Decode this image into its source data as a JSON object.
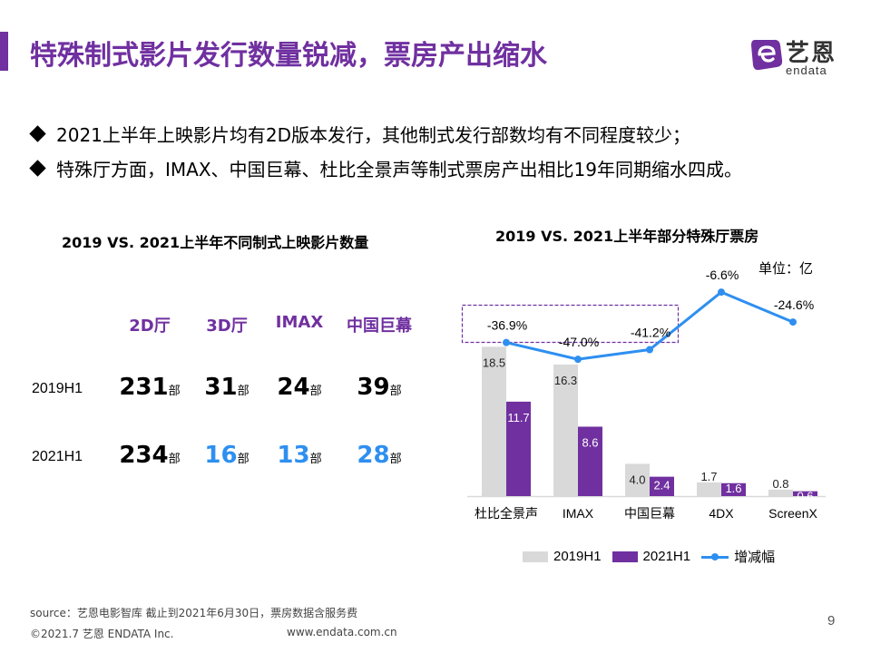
{
  "header": {
    "title": "特殊制式影片发行数量锐减，票房产出缩水",
    "accent_color": "#7030a0",
    "logo": {
      "icon": "endata-e-logo-icon",
      "cn": "艺恩",
      "en": "endata"
    }
  },
  "bullets": [
    "2021上半年上映影片均有2D版本发行，其他制式发行部数均有不同程度较少；",
    "特殊厅方面，IMAX、中国巨幕、杜比全景声等制式票房产出相比19年同期缩水四成。"
  ],
  "left_table": {
    "title": "2019 VS. 2021上半年不同制式上映影片数量",
    "columns": [
      "2D厅",
      "3D厅",
      "IMAX",
      "中国巨幕"
    ],
    "unit": "部",
    "rows": [
      {
        "label": "2019H1",
        "values": [
          "231",
          "31",
          "24",
          "39"
        ],
        "highlight": [
          false,
          false,
          false,
          false
        ]
      },
      {
        "label": "2021H1",
        "values": [
          "234",
          "16",
          "13",
          "28"
        ],
        "highlight": [
          false,
          true,
          true,
          true
        ]
      }
    ],
    "highlight_color": "#2e8ff0"
  },
  "chart_data": [
    {
      "type": "table",
      "title": "2019 VS. 2021上半年不同制式上映影片数量",
      "columns": [
        "2D厅",
        "3D厅",
        "IMAX",
        "中国巨幕"
      ],
      "rows": [
        {
          "name": "2019H1",
          "values": [
            231,
            31,
            24,
            39
          ]
        },
        {
          "name": "2021H1",
          "values": [
            234,
            16,
            13,
            28
          ]
        }
      ],
      "unit": "部"
    },
    {
      "type": "bar",
      "title": "2019 VS. 2021上半年部分特殊厅票房",
      "unit_label": "单位：亿",
      "categories": [
        "杜比全景声",
        "IMAX",
        "中国巨幕",
        "4DX",
        "ScreenX"
      ],
      "series": [
        {
          "name": "2019H1",
          "kind": "bar",
          "color": "#d9d9d9",
          "values": [
            18.5,
            16.3,
            4.0,
            1.7,
            0.8
          ],
          "labels": [
            "18.5",
            "16.3",
            "4.0",
            "1.7",
            "0.8"
          ]
        },
        {
          "name": "2021H1",
          "kind": "bar",
          "color": "#7030a0",
          "values": [
            11.7,
            8.6,
            2.4,
            1.6,
            0.6
          ],
          "labels": [
            "11.7",
            "8.6",
            "2.4",
            "1.6",
            "0.6"
          ]
        },
        {
          "name": "增减幅",
          "kind": "line",
          "color": "#2e8ff0",
          "values": [
            -36.9,
            -47.0,
            -41.2,
            -6.6,
            -24.6
          ],
          "labels": [
            "-36.9%",
            "-47.0%",
            "-41.2%",
            "-6.6%",
            "-24.6%"
          ]
        }
      ],
      "highlight_box": {
        "categories": [
          "杜比全景声",
          "IMAX",
          "中国巨幕"
        ],
        "style": "dashed",
        "color": "#7030a0"
      },
      "ylim": [
        0,
        20
      ],
      "line_ylim": [
        -60,
        0
      ],
      "grid": false,
      "legend": "bottom",
      "xlabel": "",
      "ylabel": ""
    }
  ],
  "footer": {
    "source": "source：艺恩电影智库     截止到2021年6月30日，票房数据含服务费",
    "copyright": "©2021.7 艺恩 ENDATA Inc.",
    "website": "www.endata.com.cn",
    "page_number": "9"
  }
}
